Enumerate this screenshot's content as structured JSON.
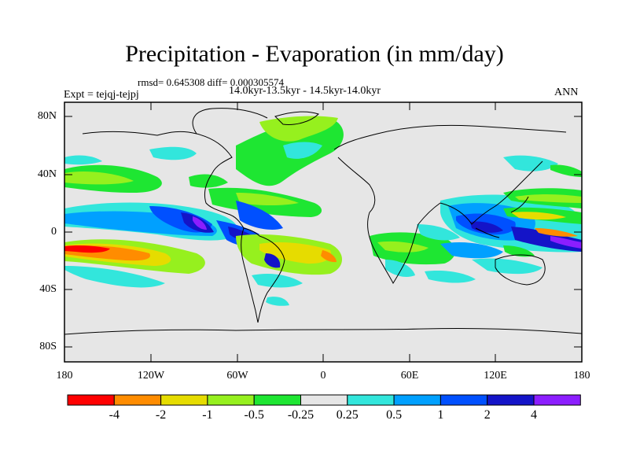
{
  "title": "Precipitation - Evaporation (in mm/day)",
  "stats": "rmsd= 0.645308 diff= 0.000305574",
  "period": "14.0kyr-13.5kyr - 14.5kyr-14.0kyr",
  "experiment": "Expt = tejqj-tejpj",
  "season": "ANN",
  "lat_labels": [
    "80N",
    "40N",
    "0",
    "40S",
    "80S"
  ],
  "lon_labels": [
    "180",
    "120W",
    "60W",
    "0",
    "60E",
    "120E",
    "180"
  ],
  "colorbar": {
    "colors": [
      "#ff0000",
      "#ff8c00",
      "#e6dc00",
      "#96f01e",
      "#1ee632",
      "#e6e6e6",
      "#32e6dc",
      "#00a0ff",
      "#0050ff",
      "#1414c8",
      "#8c1eff"
    ],
    "labels": [
      "-4",
      "-2",
      "-1",
      "-0.5",
      "-0.25",
      "0.25",
      "0.5",
      "1",
      "2",
      "4"
    ]
  },
  "colors": {
    "land_background": "#e6e6e6",
    "coast": "#000000"
  }
}
